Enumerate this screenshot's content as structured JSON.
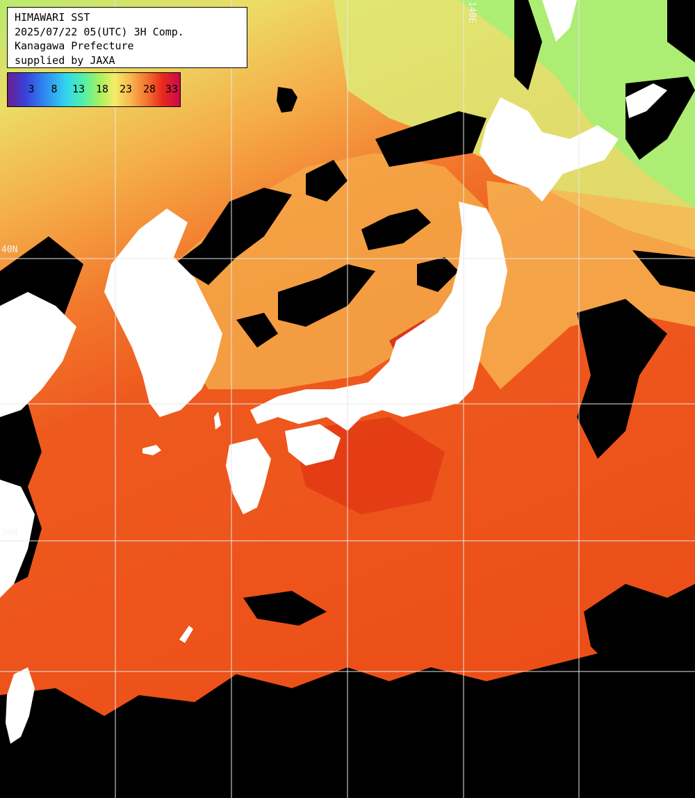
{
  "header": {
    "title": "HIMAWARI SST",
    "datetime": "2025/07/22 05(UTC) 3H Comp.",
    "region": "Kanagawa Prefecture",
    "credit": "supplied by JAXA"
  },
  "colorbar": {
    "ticks": [
      "3",
      "8",
      "13",
      "18",
      "23",
      "28",
      "33"
    ]
  },
  "grid": {
    "lat_labels": [
      "40N",
      "30N"
    ],
    "lon_labels": [
      "140E"
    ]
  },
  "colors": {
    "land": "#ffffff",
    "cloud": "#000000",
    "warm_sea": "#ee4a18",
    "hot_sea": "#d8200e",
    "mild_sea": "#f59a3a",
    "cool_sea": "#f2d160",
    "cold_sea": "#b7ec6a",
    "grid_line": "#e8e8e8"
  }
}
